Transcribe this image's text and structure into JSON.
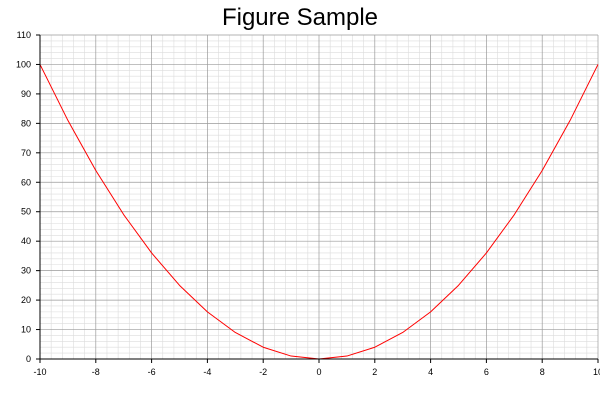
{
  "chart_data": {
    "type": "line",
    "title": "Figure Sample",
    "xlabel": "",
    "ylabel": "",
    "xlim": [
      -10,
      10
    ],
    "ylim": [
      0,
      110
    ],
    "x_ticks": [
      -10,
      -8,
      -6,
      -4,
      -2,
      0,
      2,
      4,
      6,
      8,
      10
    ],
    "x_tick_labels": [
      "-10",
      "-8",
      "-6",
      "-4",
      "-2",
      "0",
      "2",
      "4",
      "6",
      "8",
      "10"
    ],
    "y_ticks": [
      0,
      10,
      20,
      30,
      40,
      50,
      60,
      70,
      80,
      90,
      100,
      110
    ],
    "y_tick_labels": [
      "0",
      "10",
      "20",
      "30",
      "40",
      "50",
      "60",
      "70",
      "80",
      "90",
      "100",
      "110"
    ],
    "grid": true,
    "minor_grid": true,
    "legend": "none",
    "series": [
      {
        "color": "#ff0000",
        "x": [
          -10,
          -9,
          -8,
          -7,
          -6,
          -5,
          -4,
          -3,
          -2,
          -1,
          0,
          1,
          2,
          3,
          4,
          5,
          6,
          7,
          8,
          9,
          10
        ],
        "y": [
          100,
          81,
          64,
          49,
          36,
          25,
          16,
          9,
          4,
          1,
          0,
          1,
          4,
          9,
          16,
          25,
          36,
          49,
          64,
          81,
          100
        ]
      }
    ]
  }
}
